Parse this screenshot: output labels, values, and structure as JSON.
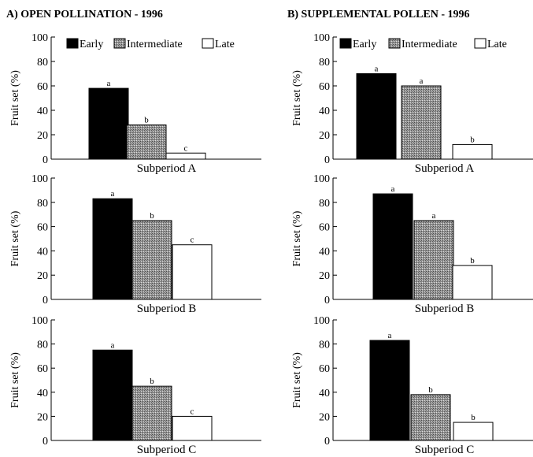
{
  "colors": {
    "early": "#000000",
    "intermediate": "hatched-gray",
    "late": "#ffffff"
  },
  "columns": [
    {
      "title": "A)  OPEN POLLINATION - 1996"
    },
    {
      "title": "B) SUPPLEMENTAL POLLEN - 1996"
    }
  ],
  "chart_data": [
    {
      "type": "bar",
      "title": "A)  OPEN POLLINATION - 1996",
      "xlabel": "Subperiod A",
      "ylabel": "Fruit set (%)",
      "ylim": [
        0,
        100
      ],
      "yticks": [
        0,
        20,
        40,
        60,
        80,
        100
      ],
      "legend": [
        "Early",
        "Intermediate",
        "Late"
      ],
      "legend_position": "top",
      "series": [
        {
          "name": "Early",
          "value": 58,
          "label": "a"
        },
        {
          "name": "Intermediate",
          "value": 28,
          "label": "b"
        },
        {
          "name": "Late",
          "value": 5,
          "label": "c"
        }
      ]
    },
    {
      "type": "bar",
      "title": "B) SUPPLEMENTAL POLLEN - 1996",
      "xlabel": "Subperiod A",
      "ylabel": "Fruit set (%)",
      "ylim": [
        0,
        100
      ],
      "yticks": [
        0,
        20,
        40,
        60,
        80,
        100
      ],
      "legend": [
        "Early",
        "Intermediate",
        "Late"
      ],
      "legend_position": "top",
      "series": [
        {
          "name": "Early",
          "value": 70,
          "label": "a"
        },
        {
          "name": "Intermediate",
          "value": 60,
          "label": "a"
        },
        {
          "name": "Late",
          "value": 12,
          "label": "b"
        }
      ]
    },
    {
      "type": "bar",
      "xlabel": "Subperiod B",
      "ylabel": "Fruit set (%)",
      "ylim": [
        0,
        100
      ],
      "yticks": [
        0,
        20,
        40,
        60,
        80,
        100
      ],
      "series": [
        {
          "name": "Early",
          "value": 83,
          "label": "a"
        },
        {
          "name": "Intermediate",
          "value": 65,
          "label": "b"
        },
        {
          "name": "Late",
          "value": 45,
          "label": "c"
        }
      ]
    },
    {
      "type": "bar",
      "xlabel": "Subperiod B",
      "ylabel": "Fruit set (%)",
      "ylim": [
        0,
        100
      ],
      "yticks": [
        0,
        20,
        40,
        60,
        80,
        100
      ],
      "series": [
        {
          "name": "Early",
          "value": 87,
          "label": "a"
        },
        {
          "name": "Intermediate",
          "value": 65,
          "label": "a"
        },
        {
          "name": "Late",
          "value": 28,
          "label": "b"
        }
      ]
    },
    {
      "type": "bar",
      "xlabel": "Subperiod C",
      "ylabel": "Fruit set (%)",
      "ylim": [
        0,
        100
      ],
      "yticks": [
        0,
        20,
        40,
        60,
        80,
        100
      ],
      "series": [
        {
          "name": "Early",
          "value": 75,
          "label": "a"
        },
        {
          "name": "Intermediate",
          "value": 45,
          "label": "b"
        },
        {
          "name": "Late",
          "value": 20,
          "label": "c"
        }
      ]
    },
    {
      "type": "bar",
      "xlabel": "Subperiod C",
      "ylabel": "Fruit set (%)",
      "ylim": [
        0,
        100
      ],
      "yticks": [
        0,
        20,
        40,
        60,
        80,
        100
      ],
      "series": [
        {
          "name": "Early",
          "value": 83,
          "label": "a"
        },
        {
          "name": "Intermediate",
          "value": 38,
          "label": "b"
        },
        {
          "name": "Late",
          "value": 15,
          "label": "b"
        }
      ]
    }
  ]
}
